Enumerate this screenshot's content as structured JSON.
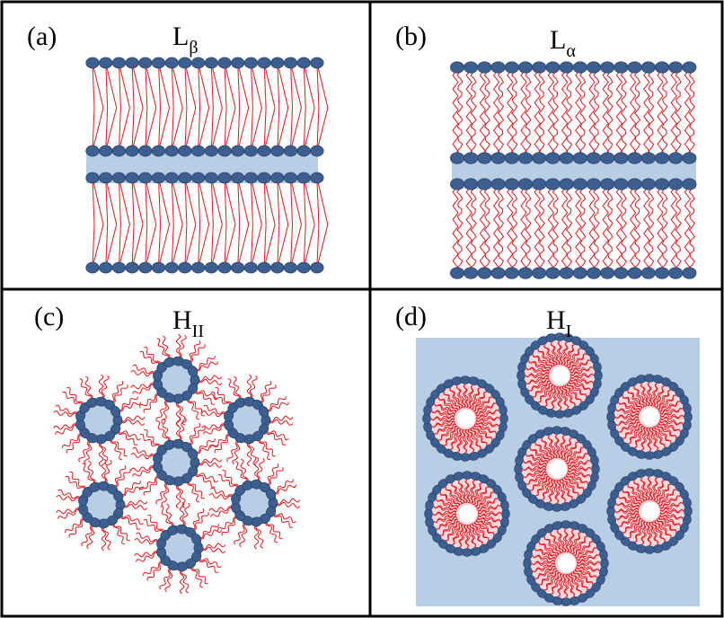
{
  "colors": {
    "head": "#3d5f8f",
    "head_stroke": "#2b4670",
    "tail": "#e8161b",
    "water": "#b9cde4",
    "border": "#000000"
  },
  "panels": [
    {
      "id": "a",
      "label": "(a)",
      "phase": "L",
      "sub": "β",
      "kind": "lamellar-gel"
    },
    {
      "id": "b",
      "label": "(b)",
      "phase": "L",
      "sub": "α",
      "kind": "lamellar-fluid"
    },
    {
      "id": "c",
      "label": "(c)",
      "phase": "H",
      "sub": "II",
      "kind": "inverse-hexagonal"
    },
    {
      "id": "d",
      "label": "(d)",
      "phase": "H",
      "sub": "I",
      "kind": "normal-hexagonal"
    }
  ]
}
